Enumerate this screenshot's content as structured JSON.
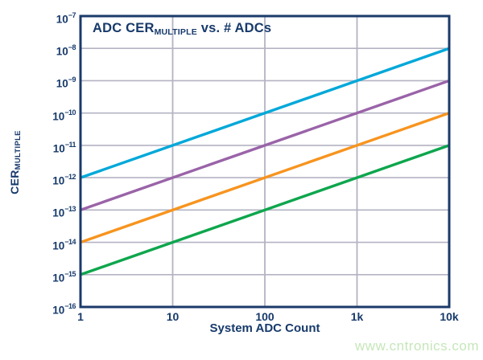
{
  "chart_data": {
    "type": "line",
    "title": "ADC CER_MULTIPLE vs. # ADCs",
    "title_parts": {
      "prefix": "ADC CER",
      "sub": "MULTIPLE",
      "suffix": " vs. # ADCs"
    },
    "xlabel": "System ADC Count",
    "ylabel": "CER_MULTIPLE",
    "ylabel_parts": {
      "prefix": "CER",
      "sub": "MULTIPLE"
    },
    "grid": true,
    "legend": "none",
    "x_axis": {
      "scale": "log",
      "min": 1,
      "max": 10000,
      "tick_values": [
        1,
        10,
        100,
        1000,
        10000
      ],
      "tick_labels": [
        "1",
        "10",
        "100",
        "1k",
        "10k"
      ]
    },
    "y_axis": {
      "scale": "log",
      "min_exp": -16,
      "max_exp": -7,
      "tick_exponents": [
        -7,
        -8,
        -9,
        -10,
        -11,
        -12,
        -13,
        -14,
        -15,
        -16
      ],
      "tick_labels": [
        "10^-7",
        "10^-8",
        "10^-9",
        "10^-10",
        "10^-11",
        "10^-12",
        "10^-13",
        "10^-14",
        "10^-15",
        "10^-16"
      ]
    },
    "series": [
      {
        "name": "cer-1e-12-per-adc",
        "color": "#00a8d9",
        "points": [
          [
            1,
            1e-12
          ],
          [
            10000,
            1e-08
          ]
        ]
      },
      {
        "name": "cer-1e-13-per-adc",
        "color": "#9a63a8",
        "points": [
          [
            1,
            1e-13
          ],
          [
            10000,
            1e-09
          ]
        ]
      },
      {
        "name": "cer-1e-14-per-adc",
        "color": "#f7941e",
        "points": [
          [
            1,
            1e-14
          ],
          [
            10000,
            1e-10
          ]
        ]
      },
      {
        "name": "cer-1e-15-per-adc",
        "color": "#0ea64d",
        "points": [
          [
            1,
            1e-15
          ],
          [
            10000,
            1e-11
          ]
        ]
      }
    ],
    "colors": {
      "axis_border": "#1b3a6b",
      "grid_line": "#b3b3c3",
      "text": "#173a6b"
    }
  },
  "watermark": {
    "text": "www.cntronics.com",
    "color": "#c6e6b9"
  }
}
